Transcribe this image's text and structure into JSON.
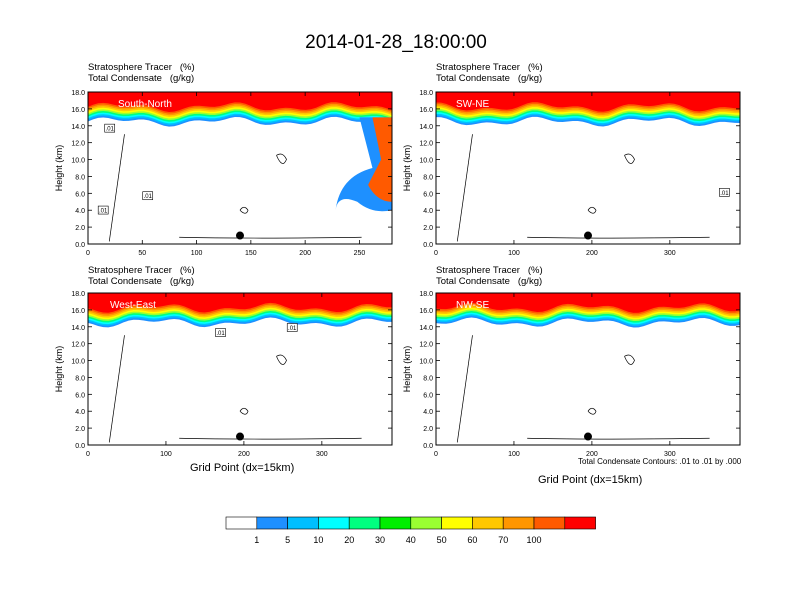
{
  "title": "2014-01-28_18:00:00",
  "header_line1": "Stratosphere Tracer   (%)",
  "header_line2": "Total Condensate   (g/kg)",
  "ylabel": "Height (km)",
  "xlabel": "Grid Point (dx=15km)",
  "footnote": "Total Condensate Contours: .01 to .01 by .000",
  "colorbar": {
    "levels": [
      "1",
      "5",
      "10",
      "20",
      "30",
      "40",
      "50",
      "60",
      "70",
      "100"
    ],
    "colors": [
      "#ffffff",
      "#1e90ff",
      "#00bfff",
      "#00ffff",
      "#00ff80",
      "#00ee00",
      "#9aff32",
      "#ffff00",
      "#ffc800",
      "#ff9600",
      "#ff5a00",
      "#ff0000"
    ]
  },
  "chart_data": [
    {
      "type": "contour",
      "panel_label": "South-North",
      "xticks": [
        "0",
        "50",
        "100",
        "150",
        "200",
        "250"
      ],
      "xlim": [
        0,
        280
      ],
      "yticks": [
        "0.0",
        "2.0",
        "4.0",
        "6.0",
        "8.0",
        "10.0",
        "12.0",
        "14.0",
        "16.0",
        "18.0"
      ],
      "ylim": [
        0,
        18
      ],
      "tracer_band_km": [
        14.5,
        18
      ],
      "marker": {
        "x": 140,
        "y": 1.0
      },
      "contour_labels": [
        {
          "text": ".01",
          "x": 20,
          "y": 13.6
        },
        {
          "text": ".01",
          "x": 55,
          "y": 5.6
        },
        {
          "text": ".01",
          "x": 14,
          "y": 3.9
        }
      ]
    },
    {
      "type": "contour",
      "panel_label": "SW-NE",
      "xticks": [
        "0",
        "100",
        "200",
        "300"
      ],
      "xlim": [
        0,
        390
      ],
      "yticks": [
        "0.0",
        "2.0",
        "4.0",
        "6.0",
        "8.0",
        "10.0",
        "12.0",
        "14.0",
        "16.0",
        "18.0"
      ],
      "ylim": [
        0,
        18
      ],
      "tracer_band_km": [
        14.5,
        18
      ],
      "marker": {
        "x": 195,
        "y": 1.0
      },
      "contour_labels": [
        {
          "text": ".01",
          "x": 370,
          "y": 6.0
        }
      ]
    },
    {
      "type": "contour",
      "panel_label": "West-East",
      "xticks": [
        "0",
        "100",
        "200",
        "300"
      ],
      "xlim": [
        0,
        390
      ],
      "yticks": [
        "0.0",
        "2.0",
        "4.0",
        "6.0",
        "8.0",
        "10.0",
        "12.0",
        "14.0",
        "16.0",
        "18.0"
      ],
      "ylim": [
        0,
        18
      ],
      "tracer_band_km": [
        14.5,
        18
      ],
      "marker": {
        "x": 195,
        "y": 1.0
      },
      "contour_labels": [
        {
          "text": ".01",
          "x": 170,
          "y": 13.2
        },
        {
          "text": ".01",
          "x": 262,
          "y": 13.8
        }
      ]
    },
    {
      "type": "contour",
      "panel_label": "NW-SE",
      "xticks": [
        "0",
        "100",
        "200",
        "300"
      ],
      "xlim": [
        0,
        390
      ],
      "yticks": [
        "0.0",
        "2.0",
        "4.0",
        "6.0",
        "8.0",
        "10.0",
        "12.0",
        "14.0",
        "16.0",
        "18.0"
      ],
      "ylim": [
        0,
        18
      ],
      "tracer_band_km": [
        14.5,
        18
      ],
      "marker": {
        "x": 195,
        "y": 1.0
      },
      "contour_labels": []
    }
  ]
}
